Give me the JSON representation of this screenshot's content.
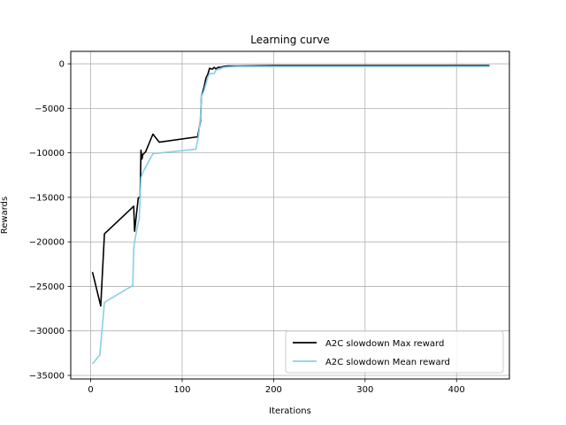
{
  "chart_data": {
    "type": "line",
    "title": "Learning curve",
    "xlabel": "Iterations",
    "ylabel": "Rewards",
    "xlim": [
      -21.8,
      457.8
    ],
    "ylim": [
      -35400,
      1400
    ],
    "xticks": [
      0,
      100,
      200,
      300,
      400
    ],
    "yticks": [
      0,
      -5000,
      -10000,
      -15000,
      -20000,
      -25000,
      -30000,
      -35000
    ],
    "grid": true,
    "legend_position": "lower-right",
    "series": [
      {
        "name": "A2C slowdown Max reward",
        "color": "#000000",
        "x": [
          2,
          11,
          15,
          47,
          48,
          52,
          53,
          54,
          55,
          56,
          57,
          58,
          60,
          68,
          75,
          117,
          119,
          120,
          121,
          124,
          126,
          128,
          130,
          133,
          135,
          137,
          139,
          142,
          145,
          150,
          160,
          200,
          300,
          436
        ],
        "y": [
          -23400,
          -27200,
          -19100,
          -16000,
          -18800,
          -15100,
          -15000,
          -15000,
          -9700,
          -10700,
          -10200,
          -10100,
          -9900,
          -7900,
          -8800,
          -8200,
          -7000,
          -6500,
          -3700,
          -2600,
          -1600,
          -1200,
          -500,
          -600,
          -400,
          -600,
          -400,
          -400,
          -300,
          -250,
          -250,
          -200,
          -200,
          -200
        ]
      },
      {
        "name": "A2C slowdown Mean reward",
        "color": "#87ceeb",
        "x": [
          2,
          10,
          15,
          46,
          47,
          48,
          52,
          53,
          55,
          57,
          60,
          68,
          115,
          118,
          120,
          121,
          124,
          128,
          130,
          135,
          137,
          140,
          145,
          150,
          160,
          200,
          300,
          436
        ],
        "y": [
          -33700,
          -32700,
          -26800,
          -24900,
          -20800,
          -20000,
          -17800,
          -17500,
          -12800,
          -12200,
          -11600,
          -10100,
          -9600,
          -8000,
          -6000,
          -3700,
          -3000,
          -1500,
          -1100,
          -1100,
          -700,
          -600,
          -400,
          -350,
          -300,
          -300,
          -300,
          -300
        ]
      }
    ]
  }
}
